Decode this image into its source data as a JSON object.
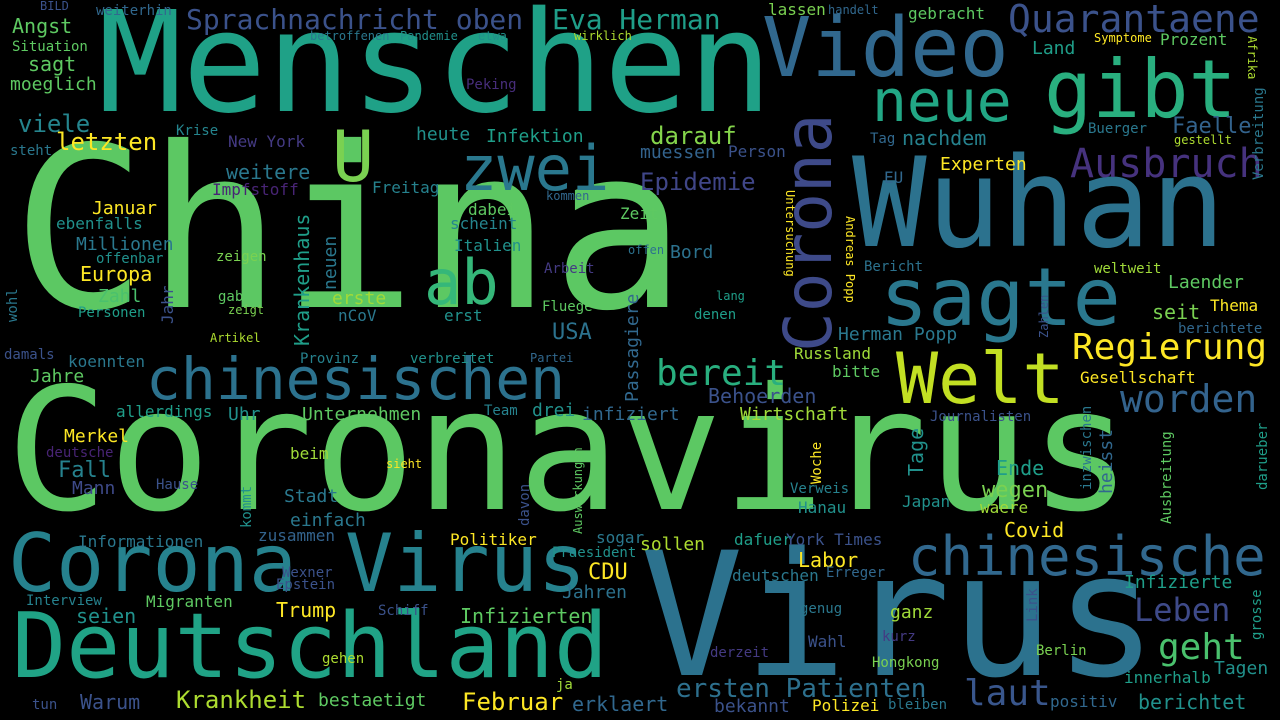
{
  "words": [
    {
      "text": "China",
      "color": "#5cc863"
    },
    {
      "text": "Coronavirus",
      "color": "#5cc863"
    },
    {
      "text": "Menschen",
      "color": "#1fa187"
    },
    {
      "text": "Virus",
      "color": "#2c728e"
    },
    {
      "text": "Wuhan",
      "color": "#2c728e"
    },
    {
      "text": "Deutschland",
      "color": "#20a386"
    },
    {
      "text": "Corona Virus",
      "color": "#26828e"
    },
    {
      "text": "Video",
      "color": "#31688e"
    },
    {
      "text": "gibt",
      "color": "#29af7f"
    },
    {
      "text": "sagte",
      "color": "#2a788e"
    },
    {
      "text": "Welt",
      "color": "#c2df23"
    },
    {
      "text": "chinesischen",
      "color": "#2c728e"
    },
    {
      "text": "zwei",
      "color": "#2a788e"
    },
    {
      "text": "neue",
      "color": "#22a785"
    },
    {
      "text": "ab",
      "color": "#35b779"
    },
    {
      "text": "U",
      "color": "#7ad151"
    },
    {
      "text": "Corona",
      "color": "#3e4a89"
    },
    {
      "text": "chinesische",
      "color": "#31688e"
    },
    {
      "text": "Quarantaene",
      "color": "#3b528b"
    },
    {
      "text": "Ausbruch",
      "color": "#46327e"
    },
    {
      "text": "Regierung",
      "color": "#fde725"
    },
    {
      "text": "worden",
      "color": "#33638d"
    },
    {
      "text": "bereit",
      "color": "#29af7f"
    },
    {
      "text": "Sprachnachricht oben",
      "color": "#3b528b"
    },
    {
      "text": "Eva Herman",
      "color": "#1f9e89"
    },
    {
      "text": "Leben",
      "color": "#3e4a89"
    },
    {
      "text": "geht",
      "color": "#4ac16d"
    },
    {
      "text": "laut",
      "color": "#39568c"
    },
    {
      "text": "ersten Patienten",
      "color": "#2d708e"
    },
    {
      "text": "Krankheit",
      "color": "#addc30"
    },
    {
      "text": "Februar",
      "color": "#fde725"
    },
    {
      "text": "Epidemie",
      "color": "#404688"
    },
    {
      "text": "letzten",
      "color": "#fde725"
    },
    {
      "text": "darauf",
      "color": "#84d44b"
    },
    {
      "text": "muessen",
      "color": "#33638d"
    },
    {
      "text": "viele",
      "color": "#25858e"
    },
    {
      "text": "Angst",
      "color": "#5ec962"
    },
    {
      "text": "sagt",
      "color": "#5ec962"
    },
    {
      "text": "moeglich",
      "color": "#5ec962"
    },
    {
      "text": "Situation",
      "color": "#5ec962"
    },
    {
      "text": "BILD",
      "color": "#3b528b"
    },
    {
      "text": "weiterhin",
      "color": "#31688e"
    },
    {
      "text": "betroffenen",
      "color": "#2a788e"
    },
    {
      "text": "Pandemie",
      "color": "#21918c"
    },
    {
      "text": "etwa",
      "color": "#21918c"
    },
    {
      "text": "wirklich",
      "color": "#addc30"
    },
    {
      "text": "lassen",
      "color": "#7ad151"
    },
    {
      "text": "handelt",
      "color": "#31688e"
    },
    {
      "text": "gebracht",
      "color": "#5ec962"
    },
    {
      "text": "Land",
      "color": "#1f9e89"
    },
    {
      "text": "Symptome",
      "color": "#fde725"
    },
    {
      "text": "Prozent",
      "color": "#5ec962"
    },
    {
      "text": "Afrika",
      "color": "#addc30"
    },
    {
      "text": "Verbreitung",
      "color": "#2a788e"
    },
    {
      "text": "Peking",
      "color": "#472d7b"
    },
    {
      "text": "Krise",
      "color": "#25858e"
    },
    {
      "text": "heute",
      "color": "#21918c"
    },
    {
      "text": "Infektion",
      "color": "#1f9e89"
    },
    {
      "text": "New York",
      "color": "#443a83"
    },
    {
      "text": "Person",
      "color": "#3b528b"
    },
    {
      "text": "nachdem",
      "color": "#26828e"
    },
    {
      "text": "Tag",
      "color": "#31688e"
    },
    {
      "text": "Faelle",
      "color": "#33638d"
    },
    {
      "text": "Buerger",
      "color": "#2a788e"
    },
    {
      "text": "gestellt",
      "color": "#addc30"
    },
    {
      "text": "steht",
      "color": "#2a788e"
    },
    {
      "text": "weitere",
      "color": "#2a788e"
    },
    {
      "text": "Impfstoff",
      "color": "#482475"
    },
    {
      "text": "Freitag",
      "color": "#26828e"
    },
    {
      "text": "EU",
      "color": "#31688e"
    },
    {
      "text": "Experten",
      "color": "#fde725"
    },
    {
      "text": "Januar",
      "color": "#fde725"
    },
    {
      "text": "ebenfalls",
      "color": "#21918c"
    },
    {
      "text": "Millionen",
      "color": "#2a788e"
    },
    {
      "text": "Europa",
      "color": "#fde725"
    },
    {
      "text": "Zahl",
      "color": "#4ac16d"
    },
    {
      "text": "Personen",
      "color": "#1f9e89"
    },
    {
      "text": "offenbar",
      "color": "#21918c"
    },
    {
      "text": "zeigen",
      "color": "#7ad151"
    },
    {
      "text": "gab",
      "color": "#5ec962"
    },
    {
      "text": "zeigt",
      "color": "#7ad151"
    },
    {
      "text": "Artikel",
      "color": "#addc30"
    },
    {
      "text": "Jahr",
      "color": "#3b528b"
    },
    {
      "text": "Krankenhaus",
      "color": "#1f9e89"
    },
    {
      "text": "neuen",
      "color": "#2a788e"
    },
    {
      "text": "erste",
      "color": "#a0da39"
    },
    {
      "text": "nCoV",
      "color": "#2a788e"
    },
    {
      "text": "dabei",
      "color": "#5ec962"
    },
    {
      "text": "scheint",
      "color": "#25858e"
    },
    {
      "text": "Italien",
      "color": "#21918c"
    },
    {
      "text": "Zeit",
      "color": "#5ec962"
    },
    {
      "text": "erst",
      "color": "#21918c"
    },
    {
      "text": "Arbeit",
      "color": "#443a83"
    },
    {
      "text": "Fluege",
      "color": "#5ec962"
    },
    {
      "text": "offen",
      "color": "#2c728e"
    },
    {
      "text": "kommen",
      "color": "#31688e"
    },
    {
      "text": "Bord",
      "color": "#2c728e"
    },
    {
      "text": "lang",
      "color": "#1f9e89"
    },
    {
      "text": "denen",
      "color": "#1f9e89"
    },
    {
      "text": "Passagiere",
      "color": "#31688e"
    },
    {
      "text": "USA",
      "color": "#2c728e"
    },
    {
      "text": "Bericht",
      "color": "#2c728e"
    },
    {
      "text": "Untersuchung",
      "color": "#fde725"
    },
    {
      "text": "Andreas Popp",
      "color": "#fde725"
    },
    {
      "text": "Herman Popp",
      "color": "#2a788e"
    },
    {
      "text": "Laender",
      "color": "#5ec962"
    },
    {
      "text": "weltweit",
      "color": "#a0da39"
    },
    {
      "text": "seit",
      "color": "#7ad151"
    },
    {
      "text": "Thema",
      "color": "#fde725"
    },
    {
      "text": "Zahlen",
      "color": "#3b528b"
    },
    {
      "text": "berichtete",
      "color": "#31688e"
    },
    {
      "text": "wohl",
      "color": "#2a788e"
    },
    {
      "text": "damals",
      "color": "#3b528b"
    },
    {
      "text": "koennten",
      "color": "#2a788e"
    },
    {
      "text": "Provinz",
      "color": "#26828e"
    },
    {
      "text": "verbreitet",
      "color": "#21918c"
    },
    {
      "text": "Partei",
      "color": "#31688e"
    },
    {
      "text": "Russland",
      "color": "#a0da39"
    },
    {
      "text": "bitte",
      "color": "#5ec962"
    },
    {
      "text": "Gesellschaft",
      "color": "#fde725"
    },
    {
      "text": "Jahre",
      "color": "#5ec962"
    },
    {
      "text": "allerdings",
      "color": "#1f9e89"
    },
    {
      "text": "Uhr",
      "color": "#21918c"
    },
    {
      "text": "Unternehmen",
      "color": "#5ec962"
    },
    {
      "text": "Team",
      "color": "#26828e"
    },
    {
      "text": "drei",
      "color": "#21918c"
    },
    {
      "text": "infiziert",
      "color": "#31688e"
    },
    {
      "text": "Behoerden",
      "color": "#3b528b"
    },
    {
      "text": "Wirtschaft",
      "color": "#a0da39"
    },
    {
      "text": "Journalisten",
      "color": "#3b528b"
    },
    {
      "text": "Tage",
      "color": "#21918c"
    },
    {
      "text": "inzwischen",
      "color": "#2a788e"
    },
    {
      "text": "heisst",
      "color": "#31688e"
    },
    {
      "text": "darueber",
      "color": "#1f9e89"
    },
    {
      "text": "Merkel",
      "color": "#fde725"
    },
    {
      "text": "deutsche",
      "color": "#482475"
    },
    {
      "text": "Fall",
      "color": "#26828e"
    },
    {
      "text": "Mann",
      "color": "#3e4a89"
    },
    {
      "text": "beim",
      "color": "#a0da39"
    },
    {
      "text": "sieht",
      "color": "#fde725"
    },
    {
      "text": "Hause",
      "color": "#3b528b"
    },
    {
      "text": "Stadt",
      "color": "#2a788e"
    },
    {
      "text": "einfach",
      "color": "#2a788e"
    },
    {
      "text": "kommt",
      "color": "#21918c"
    },
    {
      "text": "davon",
      "color": "#3b528b"
    },
    {
      "text": "Auswirkungen",
      "color": "#5ec962"
    },
    {
      "text": "Woche",
      "color": "#fde725"
    },
    {
      "text": "Verweis",
      "color": "#26828e"
    },
    {
      "text": "Hanau",
      "color": "#21918c"
    },
    {
      "text": "Ende",
      "color": "#1f9e89"
    },
    {
      "text": "wegen",
      "color": "#7ad151"
    },
    {
      "text": "Japan",
      "color": "#21918c"
    },
    {
      "text": "waere",
      "color": "#a0da39"
    },
    {
      "text": "Ausbreitung",
      "color": "#5ec962"
    },
    {
      "text": "Covid",
      "color": "#fde725"
    },
    {
      "text": "Informationen",
      "color": "#2a788e"
    },
    {
      "text": "zusammen",
      "color": "#33638d"
    },
    {
      "text": "Politiker",
      "color": "#fde725"
    },
    {
      "text": "sogar",
      "color": "#2a788e"
    },
    {
      "text": "Praesident",
      "color": "#21918c"
    },
    {
      "text": "dafuer",
      "color": "#1f9e89"
    },
    {
      "text": "York Times",
      "color": "#3b528b"
    },
    {
      "text": "Labor",
      "color": "#fde725"
    },
    {
      "text": "sollen",
      "color": "#addc30"
    },
    {
      "text": "Wexner",
      "color": "#3b528b"
    },
    {
      "text": "Epstein",
      "color": "#3b528b"
    },
    {
      "text": "CDU",
      "color": "#fde725"
    },
    {
      "text": "deutschen",
      "color": "#2a788e"
    },
    {
      "text": "Erreger",
      "color": "#31688e"
    },
    {
      "text": "Infizierte",
      "color": "#1f9e89"
    },
    {
      "text": "Interview",
      "color": "#26828e"
    },
    {
      "text": "Migranten",
      "color": "#5ec962"
    },
    {
      "text": "Jahren",
      "color": "#2c728e"
    },
    {
      "text": "seien",
      "color": "#21918c"
    },
    {
      "text": "Trump",
      "color": "#fde725"
    },
    {
      "text": "Schiff",
      "color": "#3b528b"
    },
    {
      "text": "Infizierten",
      "color": "#5ec962"
    },
    {
      "text": "genug",
      "color": "#2a788e"
    },
    {
      "text": "ganz",
      "color": "#a0da39"
    },
    {
      "text": "Link",
      "color": "#3b528b"
    },
    {
      "text": "grosse",
      "color": "#1f9e89"
    },
    {
      "text": "Wahl",
      "color": "#3b528b"
    },
    {
      "text": "kurz",
      "color": "#443a83"
    },
    {
      "text": "Berlin",
      "color": "#7ad151"
    },
    {
      "text": "gehen",
      "color": "#addc30"
    },
    {
      "text": "derzeit",
      "color": "#443a83"
    },
    {
      "text": "Hongkong",
      "color": "#7ad151"
    },
    {
      "text": "Tagen",
      "color": "#21918c"
    },
    {
      "text": "innerhalb",
      "color": "#1f9e89"
    },
    {
      "text": "Warum",
      "color": "#3b528b"
    },
    {
      "text": "bestaetigt",
      "color": "#5ec962"
    },
    {
      "text": "ja",
      "color": "#a0da39"
    },
    {
      "text": "erklaert",
      "color": "#31688e"
    },
    {
      "text": "bekannt",
      "color": "#3b528b"
    },
    {
      "text": "Polizei",
      "color": "#fde725"
    },
    {
      "text": "bleiben",
      "color": "#2a788e"
    },
    {
      "text": "positiv",
      "color": "#31688e"
    },
    {
      "text": "berichtet",
      "color": "#21918c"
    },
    {
      "text": "tun",
      "color": "#3b528b"
    }
  ]
}
